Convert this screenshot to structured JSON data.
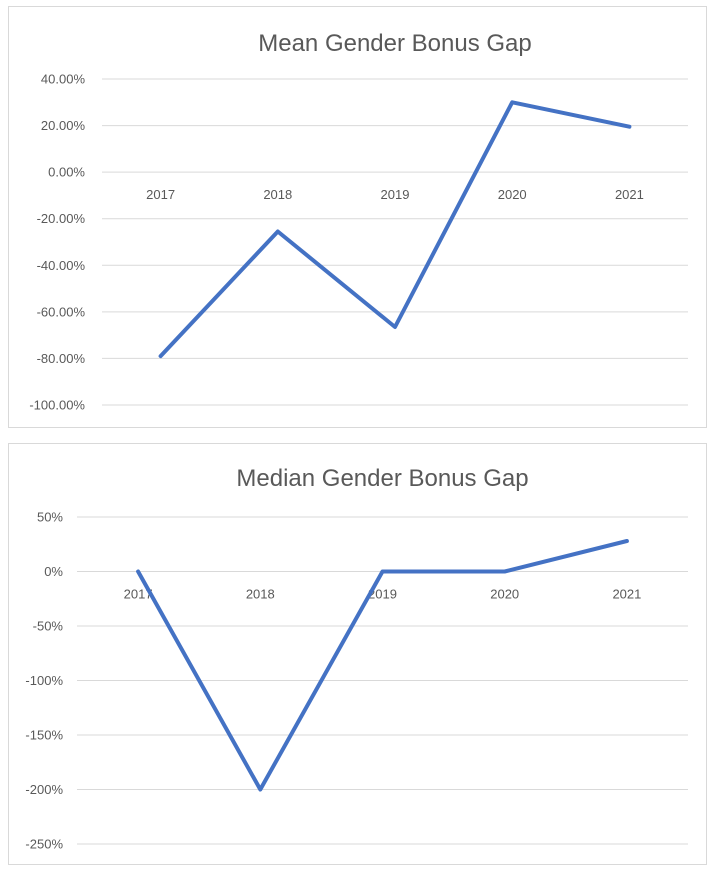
{
  "chart_data": [
    {
      "type": "line",
      "title": "Mean Gender Bonus Gap",
      "categories": [
        "2017",
        "2018",
        "2019",
        "2020",
        "2021"
      ],
      "values": [
        -79.0,
        -25.5,
        -66.5,
        30.0,
        19.5
      ],
      "y_tick_labels": [
        "40.00%",
        "20.00%",
        "0.00%",
        "-20.00%",
        "-40.00%",
        "-60.00%",
        "-80.00%",
        "-100.00%"
      ],
      "ylim": [
        -100,
        40
      ],
      "y_unit": "percent",
      "grid": true,
      "legend": "none",
      "color": "#4472c4"
    },
    {
      "type": "line",
      "title": "Median Gender Bonus Gap",
      "categories": [
        "2017",
        "2018",
        "2019",
        "2020",
        "2021"
      ],
      "values": [
        0,
        -200,
        0,
        0,
        28
      ],
      "y_tick_labels": [
        "50%",
        "0%",
        "-50%",
        "-100%",
        "-150%",
        "-200%",
        "-250%"
      ],
      "ylim": [
        -250,
        50
      ],
      "y_unit": "percent",
      "grid": true,
      "legend": "none",
      "color": "#4472c4"
    }
  ]
}
